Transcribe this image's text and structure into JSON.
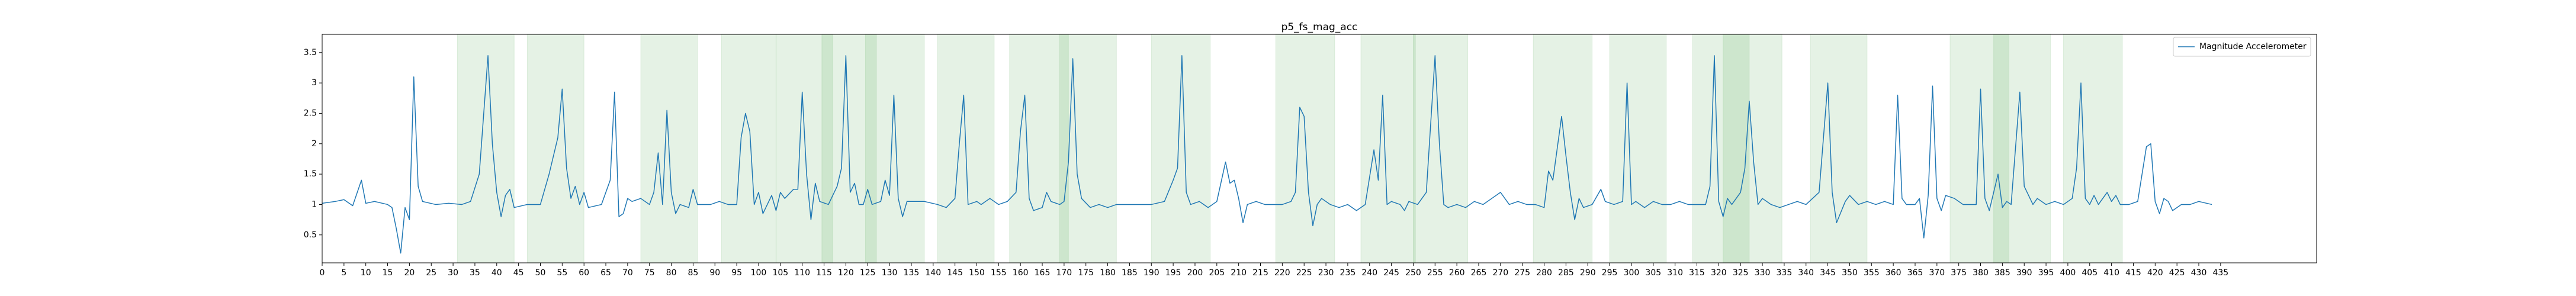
{
  "chart_data": {
    "type": "line",
    "title": "p5_fs_mag_acc",
    "xlim": [
      0,
      457
    ],
    "ylim": [
      0.04,
      3.8
    ],
    "xticks": [
      0,
      5,
      10,
      15,
      20,
      25,
      30,
      35,
      40,
      45,
      50,
      55,
      60,
      65,
      70,
      75,
      80,
      85,
      90,
      95,
      100,
      105,
      110,
      115,
      120,
      125,
      130,
      135,
      140,
      145,
      150,
      155,
      160,
      165,
      170,
      175,
      180,
      185,
      190,
      195,
      200,
      205,
      210,
      215,
      220,
      225,
      230,
      235,
      240,
      245,
      250,
      255,
      260,
      265,
      270,
      275,
      280,
      285,
      290,
      295,
      300,
      305,
      310,
      315,
      320,
      325,
      330,
      335,
      340,
      345,
      350,
      355,
      360,
      365,
      370,
      375,
      380,
      385,
      390,
      395,
      400,
      405,
      410,
      415,
      420,
      425,
      430,
      435
    ],
    "yticks": [
      0.5,
      1.0,
      1.5,
      2.0,
      2.5,
      3.0,
      3.5
    ],
    "legend": "upper right",
    "span_color": "green",
    "spans": [
      [
        31,
        44
      ],
      [
        47,
        60
      ],
      [
        73,
        86
      ],
      [
        91.5,
        104
      ],
      [
        104,
        117
      ],
      [
        114.5,
        127
      ],
      [
        124.5,
        138
      ],
      [
        141,
        154
      ],
      [
        157.5,
        171
      ],
      [
        169,
        182
      ],
      [
        190,
        203.5
      ],
      [
        218.5,
        232
      ],
      [
        238,
        250.5
      ],
      [
        250,
        262.5
      ],
      [
        277.5,
        291
      ],
      [
        295,
        308
      ],
      [
        314,
        327
      ],
      [
        321,
        334.5
      ],
      [
        341,
        354
      ],
      [
        373,
        386.5
      ],
      [
        383,
        396
      ],
      [
        399,
        412.5
      ]
    ],
    "x": [
      0,
      3,
      5,
      7,
      9,
      10,
      12,
      15,
      16,
      17,
      18,
      19,
      20,
      21,
      22,
      23,
      26,
      29,
      32,
      34,
      36,
      38,
      39,
      40,
      41,
      42,
      43,
      44,
      47,
      50,
      52,
      54,
      55,
      56,
      57,
      58,
      59,
      60,
      61,
      64,
      66,
      67,
      68,
      69,
      70,
      71,
      73,
      75,
      76,
      77,
      78,
      79,
      80,
      81,
      82,
      84,
      85,
      86,
      89,
      91,
      93,
      95,
      96,
      97,
      98,
      99,
      100,
      101,
      103,
      104,
      105,
      106,
      108,
      109,
      110,
      111,
      112,
      113,
      114,
      116,
      118,
      119,
      120,
      121,
      122,
      123,
      124,
      125,
      126,
      128,
      129,
      130,
      131,
      132,
      133,
      134,
      135,
      138,
      141,
      143,
      145,
      146,
      147,
      148,
      150,
      151,
      153,
      155,
      157,
      159,
      160,
      161,
      162,
      163,
      165,
      166,
      167,
      169,
      170,
      171,
      172,
      173,
      174,
      176,
      178,
      180,
      182,
      185,
      188,
      190,
      193,
      195,
      196,
      197,
      198,
      199,
      201,
      203,
      205,
      207,
      208,
      209,
      210,
      211,
      212,
      214,
      216,
      218,
      220,
      222,
      223,
      224,
      225,
      226,
      227,
      228,
      229,
      231,
      233,
      235,
      237,
      239,
      241,
      242,
      243,
      244,
      245,
      247,
      248,
      249,
      251,
      253,
      255,
      256,
      257,
      258,
      260,
      262,
      264,
      266,
      268,
      270,
      272,
      274,
      276,
      278,
      280,
      281,
      282,
      284,
      285,
      286,
      287,
      288,
      289,
      291,
      293,
      294,
      296,
      298,
      299,
      300,
      301,
      303,
      305,
      307,
      309,
      311,
      313,
      315,
      317,
      318,
      319,
      320,
      321,
      322,
      323,
      325,
      326,
      327,
      328,
      329,
      330,
      332,
      334,
      336,
      338,
      340,
      343,
      345,
      346,
      347,
      349,
      350,
      352,
      354,
      356,
      358,
      360,
      361,
      362,
      363,
      365,
      366,
      367,
      368,
      369,
      370,
      371,
      372,
      374,
      376,
      378,
      379,
      380,
      381,
      382,
      384,
      385,
      386,
      387,
      389,
      390,
      391,
      392,
      393,
      395,
      397,
      399,
      401,
      402,
      403,
      404,
      405,
      406,
      407,
      409,
      410,
      411,
      412,
      414,
      416,
      418,
      419,
      420,
      421,
      422,
      423,
      424,
      426,
      428,
      430,
      433
    ],
    "series": [
      {
        "name": "Magnitude Accelerometer",
        "color": "#1f77b4",
        "values": [
          1.02,
          1.05,
          1.08,
          0.98,
          1.4,
          1.02,
          1.05,
          1.0,
          0.95,
          0.6,
          0.2,
          0.95,
          0.75,
          3.1,
          1.3,
          1.05,
          1.0,
          1.02,
          1.0,
          1.05,
          1.5,
          3.45,
          2.0,
          1.2,
          0.8,
          1.15,
          1.25,
          0.95,
          1.0,
          1.0,
          1.5,
          2.1,
          2.9,
          1.6,
          1.1,
          1.3,
          1.0,
          1.2,
          0.95,
          1.0,
          1.4,
          2.85,
          0.8,
          0.85,
          1.1,
          1.05,
          1.1,
          1.0,
          1.2,
          1.85,
          1.0,
          2.55,
          1.2,
          0.85,
          1.0,
          0.95,
          1.25,
          1.0,
          1.0,
          1.05,
          1.0,
          1.0,
          2.1,
          2.5,
          2.2,
          1.0,
          1.2,
          0.85,
          1.15,
          0.9,
          1.2,
          1.1,
          1.25,
          1.25,
          2.85,
          1.5,
          0.75,
          1.35,
          1.05,
          1.0,
          1.3,
          1.6,
          3.45,
          1.2,
          1.35,
          1.0,
          1.0,
          1.25,
          1.0,
          1.05,
          1.4,
          1.15,
          2.8,
          1.1,
          0.8,
          1.05,
          1.05,
          1.05,
          1.0,
          0.95,
          1.1,
          2.0,
          2.8,
          1.0,
          1.05,
          1.0,
          1.1,
          1.0,
          1.05,
          1.2,
          2.2,
          2.8,
          1.1,
          0.9,
          0.95,
          1.2,
          1.05,
          1.0,
          1.05,
          1.7,
          3.4,
          1.5,
          1.1,
          0.95,
          1.0,
          0.95,
          1.0,
          1.0,
          1.0,
          1.0,
          1.05,
          1.4,
          1.6,
          3.45,
          1.2,
          1.0,
          1.05,
          0.95,
          1.05,
          1.7,
          1.35,
          1.4,
          1.1,
          0.7,
          1.0,
          1.05,
          1.0,
          1.0,
          1.0,
          1.05,
          1.2,
          2.6,
          2.45,
          1.2,
          0.65,
          1.0,
          1.1,
          1.0,
          0.95,
          1.0,
          0.9,
          1.0,
          1.9,
          1.4,
          2.8,
          1.0,
          1.05,
          1.0,
          0.9,
          1.05,
          1.0,
          1.2,
          3.45,
          2.0,
          1.0,
          0.95,
          1.0,
          0.95,
          1.05,
          1.0,
          1.1,
          1.2,
          1.0,
          1.05,
          1.0,
          1.0,
          0.95,
          1.55,
          1.4,
          2.45,
          1.8,
          1.2,
          0.75,
          1.1,
          0.95,
          1.0,
          1.25,
          1.05,
          1.0,
          1.05,
          3.0,
          1.0,
          1.05,
          0.95,
          1.05,
          1.0,
          1.0,
          1.05,
          1.0,
          1.0,
          1.0,
          1.3,
          3.45,
          1.05,
          0.8,
          1.1,
          1.0,
          1.2,
          1.6,
          2.7,
          1.7,
          1.0,
          1.1,
          1.0,
          0.95,
          1.0,
          1.05,
          1.0,
          1.2,
          3.0,
          1.2,
          0.7,
          1.05,
          1.15,
          1.0,
          1.05,
          1.0,
          1.05,
          1.0,
          2.8,
          1.1,
          1.0,
          1.0,
          1.1,
          0.45,
          1.15,
          2.95,
          1.1,
          0.9,
          1.15,
          1.1,
          1.0,
          1.0,
          1.0,
          2.9,
          1.1,
          0.9,
          1.5,
          0.95,
          1.05,
          1.0,
          2.85,
          1.3,
          1.15,
          1.0,
          1.1,
          1.0,
          1.05,
          1.0,
          1.1,
          1.6,
          3.0,
          1.1,
          1.0,
          1.15,
          1.0,
          1.2,
          1.05,
          1.15,
          1.0,
          1.0,
          1.05,
          1.95,
          2.0,
          1.05,
          0.85,
          1.1,
          1.05,
          0.9,
          1.0,
          1.0,
          1.05,
          1.0
        ]
      }
    ]
  }
}
